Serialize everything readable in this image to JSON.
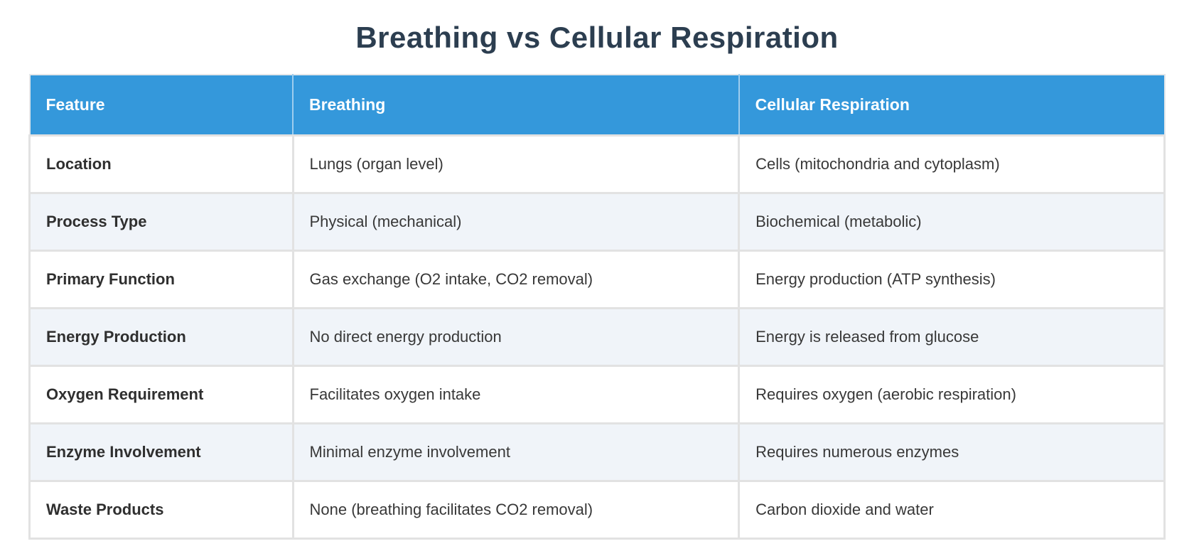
{
  "page": {
    "title": "Breathing vs Cellular Respiration"
  },
  "chart_data": {
    "type": "table",
    "title": "Breathing vs Cellular Respiration",
    "columns": [
      "Feature",
      "Breathing",
      "Cellular Respiration"
    ],
    "rows": [
      [
        "Location",
        "Lungs (organ level)",
        "Cells (mitochondria and cytoplasm)"
      ],
      [
        "Process Type",
        "Physical (mechanical)",
        "Biochemical (metabolic)"
      ],
      [
        "Primary Function",
        "Gas exchange (O2 intake, CO2 removal)",
        "Energy production (ATP synthesis)"
      ],
      [
        "Energy Production",
        "No direct energy production",
        "Energy is released from glucose"
      ],
      [
        "Oxygen Requirement",
        "Facilitates oxygen intake",
        "Requires oxygen (aerobic respiration)"
      ],
      [
        "Enzyme Involvement",
        "Minimal enzyme involvement",
        "Requires numerous enzymes"
      ],
      [
        "Waste Products",
        "None (breathing facilitates CO2 removal)",
        "Carbon dioxide and water"
      ]
    ],
    "layout": {
      "header_position": "top",
      "zebra_striping": true,
      "legend": "none",
      "grid": "cell-borders"
    }
  },
  "colors": {
    "header_background": "#3498db",
    "header_divider": "#9ecdee",
    "header_text": "#ffffff",
    "title_text": "#2c3e50",
    "row_background": "#ffffff",
    "row_alt_background": "#f0f4f9",
    "border": "#e2e2e2",
    "body_text": "#383838"
  }
}
